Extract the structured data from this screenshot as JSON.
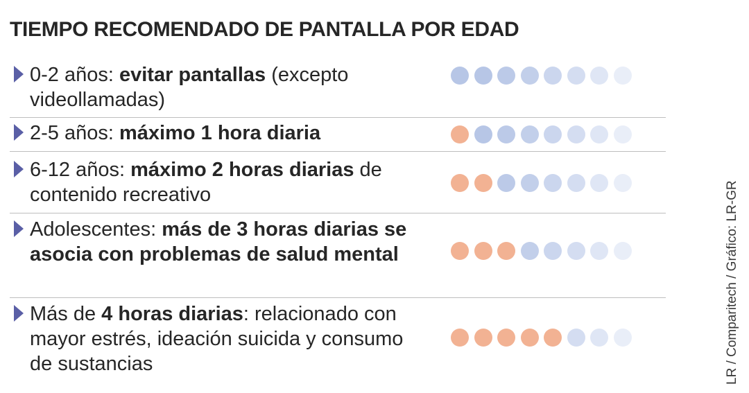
{
  "title": "TIEMPO RECOMENDADO DE PANTALLA POR EDAD",
  "source": "LR / Comparitech / Gráfico: LR-GR",
  "colors": {
    "filled": "#f2b293",
    "empty_scale": [
      "#b7c6e6",
      "#b7c6e6",
      "#bccae8",
      "#c2cfea",
      "#cbd6ee",
      "#d4ddf1",
      "#dfe6f5",
      "#e9eef8"
    ],
    "arrow": "#5a5fa6"
  },
  "rows": [
    {
      "segments": [
        {
          "t": "0-2 años: ",
          "b": false
        },
        {
          "t": "evitar pantallas",
          "b": true
        },
        {
          "t": " (excepto videollamadas)",
          "b": false
        }
      ],
      "filled": 0
    },
    {
      "segments": [
        {
          "t": "2-5 años: ",
          "b": false
        },
        {
          "t": "máximo 1 hora diaria",
          "b": true
        }
      ],
      "filled": 1
    },
    {
      "segments": [
        {
          "t": "6-12 años: ",
          "b": false
        },
        {
          "t": "máximo 2 horas diarias",
          "b": true
        },
        {
          "t": " de contenido recreativo",
          "b": false
        }
      ],
      "filled": 2
    },
    {
      "segments": [
        {
          "t": "Adolescentes: ",
          "b": false
        },
        {
          "t": "más de 3 horas diarias se asocia con problemas de salud mental",
          "b": true
        }
      ],
      "filled": 3
    },
    {
      "segments": [
        {
          "t": "Más de ",
          "b": false
        },
        {
          "t": "4 horas diarias",
          "b": true
        },
        {
          "t": ": relacionado con mayor estrés, ideación suicida y consumo de sustancias",
          "b": false
        }
      ],
      "filled": 5
    }
  ],
  "chart_data": {
    "type": "table",
    "title": "TIEMPO RECOMENDADO DE PANTALLA POR EDAD",
    "total_dots": 8,
    "categories": [
      "0-2 años",
      "2-5 años",
      "6-12 años",
      "Adolescentes",
      "Más de 4 horas diarias"
    ],
    "values": [
      0,
      1,
      2,
      3,
      5
    ]
  }
}
